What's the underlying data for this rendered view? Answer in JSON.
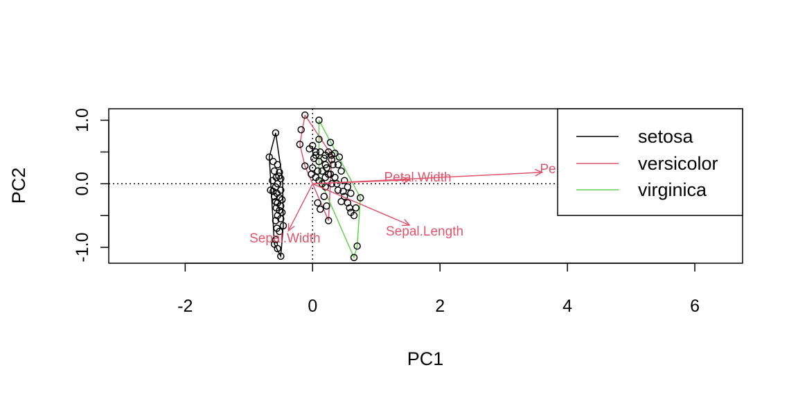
{
  "chart_data": {
    "type": "scatter",
    "xlabel": "PC1",
    "ylabel": "PC2",
    "xlim": [
      -3.2,
      6.75
    ],
    "ylim": [
      -1.25,
      1.18
    ],
    "x_ticks": [
      -2,
      0,
      2,
      4,
      6
    ],
    "x_tick_labels": [
      "-2",
      "0",
      "2",
      "4",
      "6"
    ],
    "y_ticks": [
      -1.0,
      -0.5,
      0.0,
      0.5,
      1.0
    ],
    "y_tick_labels": [
      "-1.0",
      "",
      "0.0",
      "",
      "1.0"
    ],
    "reference_lines": {
      "x": 0,
      "y": 0,
      "style": "dotted"
    },
    "legend": {
      "position": "top-right"
    },
    "colors": {
      "setosa": "#000000",
      "versicolor": "#DF536B",
      "virginica": "#61D04F",
      "loadings": "#DF536B",
      "points": "#000000"
    },
    "series": [
      {
        "name": "setosa",
        "hull": [
          [
            -0.58,
            0.8
          ],
          [
            -0.68,
            0.42
          ],
          [
            -0.6,
            -0.95
          ],
          [
            -0.5,
            -1.14
          ],
          [
            -0.46,
            -0.66
          ],
          [
            -0.47,
            0.05
          ],
          [
            -0.58,
            0.8
          ]
        ],
        "points": [
          [
            -0.58,
            0.8
          ],
          [
            -0.68,
            0.42
          ],
          [
            -0.62,
            0.35
          ],
          [
            -0.55,
            0.3
          ],
          [
            -0.6,
            0.2
          ],
          [
            -0.52,
            0.18
          ],
          [
            -0.57,
            0.1
          ],
          [
            -0.5,
            0.08
          ],
          [
            -0.63,
            0.05
          ],
          [
            -0.55,
            0.0
          ],
          [
            -0.58,
            -0.05
          ],
          [
            -0.5,
            -0.1
          ],
          [
            -0.62,
            -0.12
          ],
          [
            -0.56,
            -0.15
          ],
          [
            -0.6,
            -0.2
          ],
          [
            -0.52,
            -0.22
          ],
          [
            -0.48,
            -0.25
          ],
          [
            -0.58,
            -0.28
          ],
          [
            -0.55,
            -0.3
          ],
          [
            -0.5,
            -0.35
          ],
          [
            -0.57,
            -0.38
          ],
          [
            -0.52,
            -0.42
          ],
          [
            -0.48,
            -0.45
          ],
          [
            -0.55,
            -0.5
          ],
          [
            -0.5,
            -0.55
          ],
          [
            -0.58,
            -0.58
          ],
          [
            -0.46,
            -0.66
          ],
          [
            -0.56,
            -0.7
          ],
          [
            -0.52,
            -0.75
          ],
          [
            -0.58,
            -0.88
          ],
          [
            -0.6,
            -0.95
          ],
          [
            -0.55,
            -1.02
          ],
          [
            -0.5,
            -1.14
          ],
          [
            -0.66,
            -0.1
          ],
          [
            -0.53,
            0.12
          ]
        ]
      },
      {
        "name": "versicolor",
        "hull": [
          [
            -0.12,
            1.08
          ],
          [
            -0.2,
            0.62
          ],
          [
            -0.12,
            0.28
          ],
          [
            0.25,
            -0.58
          ],
          [
            0.3,
            0.45
          ],
          [
            -0.12,
            1.08
          ]
        ],
        "points": [
          [
            -0.12,
            1.08
          ],
          [
            -0.18,
            0.85
          ],
          [
            -0.2,
            0.62
          ],
          [
            -0.12,
            0.28
          ],
          [
            -0.05,
            0.55
          ],
          [
            0.0,
            0.6
          ],
          [
            0.05,
            0.5
          ],
          [
            0.02,
            0.4
          ],
          [
            0.1,
            0.35
          ],
          [
            0.0,
            0.25
          ],
          [
            -0.02,
            0.15
          ],
          [
            0.05,
            0.1
          ],
          [
            0.1,
            0.05
          ],
          [
            0.15,
            0.0
          ],
          [
            0.2,
            -0.05
          ],
          [
            0.18,
            -0.2
          ],
          [
            0.22,
            -0.35
          ],
          [
            0.25,
            -0.58
          ],
          [
            0.12,
            -0.4
          ],
          [
            0.08,
            -0.3
          ],
          [
            0.3,
            0.45
          ],
          [
            0.2,
            0.3
          ],
          [
            0.15,
            0.2
          ],
          [
            0.25,
            0.15
          ],
          [
            0.1,
            0.7
          ],
          [
            0.05,
            0.45
          ],
          [
            0.18,
            0.4
          ],
          [
            0.12,
            0.5
          ],
          [
            0.2,
            0.1
          ],
          [
            0.08,
            0.2
          ]
        ]
      },
      {
        "name": "virginica",
        "hull": [
          [
            0.1,
            1.0
          ],
          [
            0.75,
            -0.22
          ],
          [
            0.7,
            -0.98
          ],
          [
            0.65,
            -1.16
          ],
          [
            0.1,
            0.1
          ],
          [
            0.1,
            1.0
          ]
        ],
        "points": [
          [
            0.1,
            1.0
          ],
          [
            0.28,
            0.65
          ],
          [
            0.25,
            0.5
          ],
          [
            0.35,
            0.48
          ],
          [
            0.3,
            0.38
          ],
          [
            0.4,
            0.3
          ],
          [
            0.45,
            0.2
          ],
          [
            0.35,
            0.1
          ],
          [
            0.5,
            0.05
          ],
          [
            0.3,
            0.0
          ],
          [
            0.55,
            -0.05
          ],
          [
            0.4,
            -0.1
          ],
          [
            0.6,
            -0.15
          ],
          [
            0.5,
            -0.2
          ],
          [
            0.75,
            -0.22
          ],
          [
            0.45,
            -0.28
          ],
          [
            0.55,
            -0.3
          ],
          [
            0.68,
            -0.38
          ],
          [
            0.6,
            -0.45
          ],
          [
            0.65,
            -0.5
          ],
          [
            0.7,
            -0.98
          ],
          [
            0.65,
            -1.16
          ],
          [
            0.22,
            0.25
          ],
          [
            0.28,
            0.15
          ],
          [
            0.32,
            0.3
          ],
          [
            0.38,
            0.0
          ],
          [
            0.42,
            0.42
          ],
          [
            0.48,
            -0.12
          ],
          [
            0.58,
            -0.38
          ],
          [
            0.2,
            0.45
          ]
        ]
      }
    ],
    "loadings": [
      {
        "label": "Petal.Width",
        "tip": [
          1.52,
          0.06
        ]
      },
      {
        "label": "Petal.Length",
        "display_label": "Pe",
        "tip": [
          3.6,
          0.18
        ]
      },
      {
        "label": "Sepal.Length",
        "tip": [
          1.52,
          -0.65
        ]
      },
      {
        "label": "Sepal.Width",
        "tip": [
          -0.38,
          -0.74
        ]
      }
    ]
  }
}
